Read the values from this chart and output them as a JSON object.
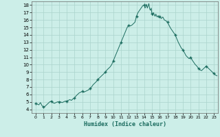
{
  "title": "",
  "xlabel": "Humidex (Indice chaleur)",
  "ylabel": "",
  "bg_color": "#cceee8",
  "grid_color": "#aad4cc",
  "line_color": "#1a6b5e",
  "marker_color": "#1a6b5e",
  "xlim": [
    -0.5,
    23.5
  ],
  "ylim": [
    3.5,
    18.5
  ],
  "yticks": [
    4,
    5,
    6,
    7,
    8,
    9,
    10,
    11,
    12,
    13,
    14,
    15,
    16,
    17,
    18
  ],
  "xticks": [
    0,
    1,
    2,
    3,
    4,
    5,
    6,
    7,
    8,
    9,
    10,
    11,
    12,
    13,
    14,
    15,
    16,
    17,
    18,
    19,
    20,
    21,
    22,
    23
  ],
  "x": [
    0,
    0.2,
    0.4,
    0.6,
    0.8,
    1,
    1.2,
    1.4,
    1.6,
    1.8,
    2,
    2.2,
    2.4,
    2.6,
    2.8,
    3,
    3.2,
    3.4,
    3.6,
    3.8,
    4,
    4.2,
    4.4,
    4.6,
    4.8,
    5,
    5.2,
    5.4,
    5.6,
    5.8,
    6,
    6.2,
    6.4,
    6.6,
    6.8,
    7,
    7.2,
    7.4,
    7.6,
    7.8,
    8,
    8.2,
    8.4,
    8.6,
    8.8,
    9,
    9.2,
    9.4,
    9.6,
    9.8,
    10,
    10.2,
    10.4,
    10.6,
    10.8,
    11,
    11.2,
    11.4,
    11.6,
    11.8,
    12,
    12.2,
    12.4,
    12.6,
    12.8,
    13,
    13.2,
    13.4,
    13.6,
    13.8,
    14,
    14.1,
    14.2,
    14.3,
    14.4,
    14.5,
    14.6,
    14.7,
    14.8,
    14.9,
    15,
    15.1,
    15.2,
    15.3,
    15.4,
    15.5,
    15.6,
    15.7,
    15.8,
    15.9,
    16,
    16.2,
    16.4,
    16.6,
    16.8,
    17,
    17.2,
    17.4,
    17.6,
    17.8,
    18,
    18.2,
    18.4,
    18.6,
    18.8,
    19,
    19.2,
    19.4,
    19.6,
    19.8,
    20,
    20.2,
    20.4,
    20.6,
    20.8,
    21,
    21.2,
    21.4,
    21.6,
    21.8,
    22,
    22.2,
    22.4,
    22.6,
    22.8,
    23,
    23.2,
    23.4
  ],
  "y": [
    4.8,
    4.7,
    4.6,
    4.9,
    4.5,
    4.3,
    4.4,
    4.6,
    4.8,
    5.0,
    5.1,
    4.9,
    4.8,
    4.9,
    5.0,
    5.0,
    5.0,
    4.9,
    5.0,
    5.1,
    5.1,
    5.2,
    5.3,
    5.2,
    5.4,
    5.5,
    5.8,
    6.0,
    6.2,
    6.3,
    6.4,
    6.3,
    6.4,
    6.5,
    6.6,
    6.8,
    7.0,
    7.3,
    7.5,
    7.7,
    8.0,
    8.2,
    8.4,
    8.6,
    8.8,
    9.0,
    9.3,
    9.5,
    9.7,
    10.0,
    10.5,
    11.0,
    11.5,
    12.0,
    12.5,
    13.0,
    13.5,
    14.0,
    14.5,
    15.0,
    15.3,
    15.2,
    15.3,
    15.5,
    15.7,
    16.5,
    17.0,
    17.3,
    17.6,
    17.9,
    18.0,
    17.6,
    17.8,
    18.1,
    17.6,
    17.9,
    18.2,
    17.5,
    17.3,
    17.6,
    16.8,
    16.6,
    17.0,
    16.7,
    16.5,
    16.8,
    16.5,
    16.4,
    16.6,
    16.3,
    16.5,
    16.2,
    16.4,
    16.0,
    15.9,
    15.7,
    15.3,
    14.9,
    14.6,
    14.3,
    14.0,
    13.5,
    13.0,
    12.6,
    12.2,
    12.0,
    11.6,
    11.2,
    11.0,
    10.8,
    11.0,
    10.6,
    10.3,
    10.0,
    9.8,
    9.5,
    9.3,
    9.2,
    9.4,
    9.6,
    9.8,
    9.6,
    9.4,
    9.2,
    9.0,
    8.8,
    8.6,
    8.5
  ],
  "marker_x": [
    0,
    1,
    2,
    3,
    4,
    5,
    6,
    7,
    8,
    9,
    10,
    11,
    12,
    13,
    14,
    15,
    16,
    17,
    18,
    19,
    20,
    21,
    22,
    23
  ],
  "marker_y": [
    4.8,
    4.3,
    5.1,
    5.0,
    5.1,
    5.5,
    6.4,
    6.8,
    8.0,
    9.0,
    10.5,
    13.0,
    15.3,
    16.5,
    18.0,
    16.8,
    16.5,
    15.7,
    14.0,
    12.0,
    11.0,
    9.5,
    9.8,
    8.8
  ]
}
